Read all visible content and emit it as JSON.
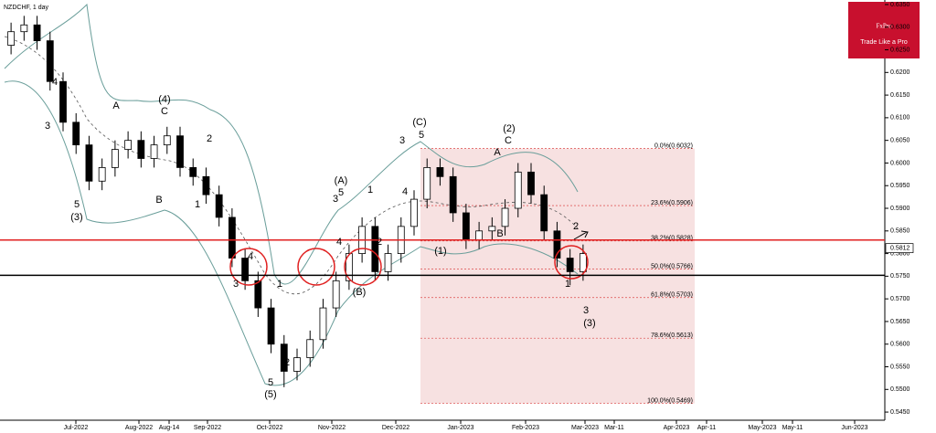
{
  "chart_data": {
    "type": "candlestick",
    "title": "NZDCHF, 1 day",
    "logo": {
      "brand": "FxPro",
      "tagline": "Trade Like a Pro"
    },
    "open": [
      0.626,
      0.629,
      0.6305,
      0.627,
      0.618,
      0.609,
      0.604,
      0.596,
      0.599,
      0.603,
      0.605,
      0.601,
      0.604,
      0.606,
      0.599,
      0.597,
      0.593,
      0.588,
      0.579,
      0.574,
      0.568,
      0.56,
      0.554,
      0.557,
      0.561,
      0.568,
      0.574,
      0.58,
      0.586,
      0.576,
      0.58,
      0.586,
      0.592,
      0.599,
      0.597,
      0.589,
      0.583,
      0.585,
      0.586,
      0.59,
      0.598,
      0.593,
      0.585,
      0.579,
      0.576
    ],
    "high": [
      0.631,
      0.6325,
      0.6325,
      0.629,
      0.62,
      0.611,
      0.606,
      0.601,
      0.605,
      0.607,
      0.607,
      0.606,
      0.608,
      0.608,
      0.601,
      0.599,
      0.595,
      0.59,
      0.581,
      0.576,
      0.57,
      0.562,
      0.559,
      0.563,
      0.57,
      0.576,
      0.582,
      0.588,
      0.588,
      0.582,
      0.588,
      0.594,
      0.601,
      0.601,
      0.599,
      0.591,
      0.587,
      0.588,
      0.592,
      0.6,
      0.6,
      0.595,
      0.587,
      0.581,
      0.582
    ],
    "low": [
      0.624,
      0.627,
      0.625,
      0.616,
      0.607,
      0.602,
      0.594,
      0.594,
      0.597,
      0.601,
      0.599,
      0.599,
      0.602,
      0.597,
      0.595,
      0.591,
      0.586,
      0.577,
      0.572,
      0.566,
      0.558,
      0.5505,
      0.552,
      0.555,
      0.559,
      0.566,
      0.572,
      0.578,
      0.574,
      0.574,
      0.578,
      0.584,
      0.59,
      0.595,
      0.587,
      0.581,
      0.581,
      0.583,
      0.584,
      0.588,
      0.591,
      0.583,
      0.577,
      0.573,
      0.574
    ],
    "close": [
      0.629,
      0.6305,
      0.627,
      0.618,
      0.609,
      0.604,
      0.596,
      0.599,
      0.603,
      0.605,
      0.601,
      0.604,
      0.606,
      0.599,
      0.597,
      0.593,
      0.588,
      0.579,
      0.574,
      0.568,
      0.56,
      0.554,
      0.557,
      0.561,
      0.568,
      0.574,
      0.58,
      0.586,
      0.576,
      0.58,
      0.586,
      0.592,
      0.599,
      0.597,
      0.589,
      0.583,
      0.585,
      0.586,
      0.59,
      0.598,
      0.593,
      0.585,
      0.579,
      0.576,
      0.58
    ],
    "x_labels": [
      "Jul-2022",
      "Aug-2022",
      "Aug-14",
      "Sep-2022",
      "Oct-2022",
      "Nov-2022",
      "Dec-2022",
      "Jan-2023",
      "Feb-2023",
      "Mar-2023",
      "Mar-11",
      "Apr-2023",
      "Apr-11",
      "May-2023",
      "May-11",
      "Jun-2023"
    ],
    "ylim": [
      0.5432,
      0.636
    ],
    "yticks": [
      {
        "value": 0.545,
        "label": "0.5450"
      },
      {
        "value": 0.55,
        "label": "0.5500"
      },
      {
        "value": 0.555,
        "label": "0.5550"
      },
      {
        "value": 0.56,
        "label": "0.5600"
      },
      {
        "value": 0.565,
        "label": "0.5650"
      },
      {
        "value": 0.57,
        "label": "0.5700"
      },
      {
        "value": 0.575,
        "label": "0.5750"
      },
      {
        "value": 0.58,
        "label": "0.5800"
      },
      {
        "value": 0.585,
        "label": "0.5850"
      },
      {
        "value": 0.59,
        "label": "0.5900"
      },
      {
        "value": 0.595,
        "label": "0.5950"
      },
      {
        "value": 0.6,
        "label": "0.6000"
      },
      {
        "value": 0.605,
        "label": "0.6050"
      },
      {
        "value": 0.61,
        "label": "0.6100"
      },
      {
        "value": 0.615,
        "label": "0.6150"
      },
      {
        "value": 0.62,
        "label": "0.6200"
      },
      {
        "value": 0.625,
        "label": "0.6250"
      },
      {
        "value": 0.63,
        "label": "0.6300"
      },
      {
        "value": 0.635,
        "label": "0.6350"
      }
    ],
    "fib_levels": [
      {
        "value": 0.6032,
        "label": "0.0%(0.6032)"
      },
      {
        "value": 0.5906,
        "label": "23.6%(0.5906)"
      },
      {
        "value": 0.5828,
        "label": "38.2%(0.5828)"
      },
      {
        "value": 0.5766,
        "label": "50.0%(0.5766)"
      },
      {
        "value": 0.5703,
        "label": "61.8%(0.5703)"
      },
      {
        "value": 0.5613,
        "label": "78.6%(0.5613)"
      },
      {
        "value": 0.5469,
        "label": "100.0%(0.5469)"
      }
    ],
    "resistance": 0.583,
    "support": 0.5752,
    "current_price": {
      "value": 0.5812,
      "label": "0.5812"
    },
    "up_color": "#ffffff",
    "down_color": "#000000",
    "annotations": [
      "5",
      "(3)",
      "3",
      "4",
      "A",
      "(4)",
      "C",
      "B",
      "2",
      "1",
      "4",
      "3",
      "5",
      "(5)",
      "1",
      "2",
      "(A)",
      "5",
      "3",
      "4",
      "(B)",
      "1",
      "2",
      "3",
      "4",
      "(C)",
      "5",
      "(1)",
      "A",
      "B",
      "(2)",
      "C",
      "2",
      "1",
      "3",
      "(3)"
    ]
  }
}
